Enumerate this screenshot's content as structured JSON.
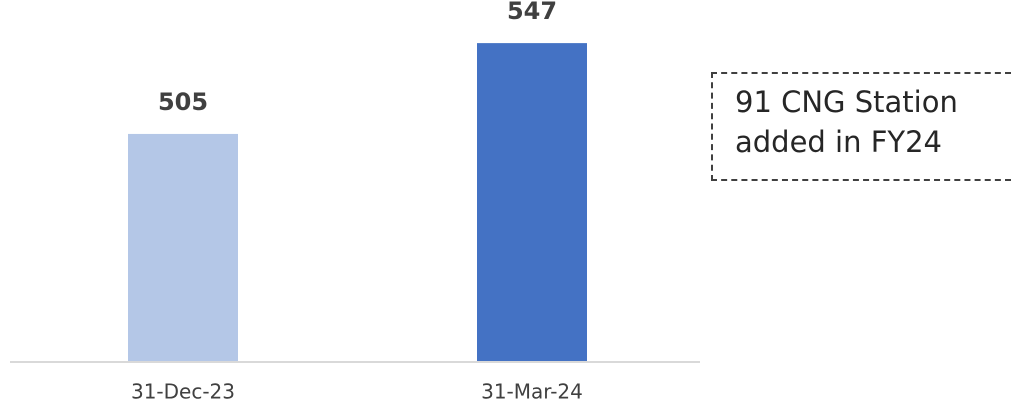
{
  "chart_data": {
    "type": "bar",
    "categories": [
      "31-Dec-23",
      "31-Mar-24"
    ],
    "values": [
      505,
      547
    ],
    "colors": [
      "#b4c7e7",
      "#4472c4"
    ],
    "ylim": [
      400,
      560
    ],
    "annotation": "91 CNG Station added in FY24"
  }
}
